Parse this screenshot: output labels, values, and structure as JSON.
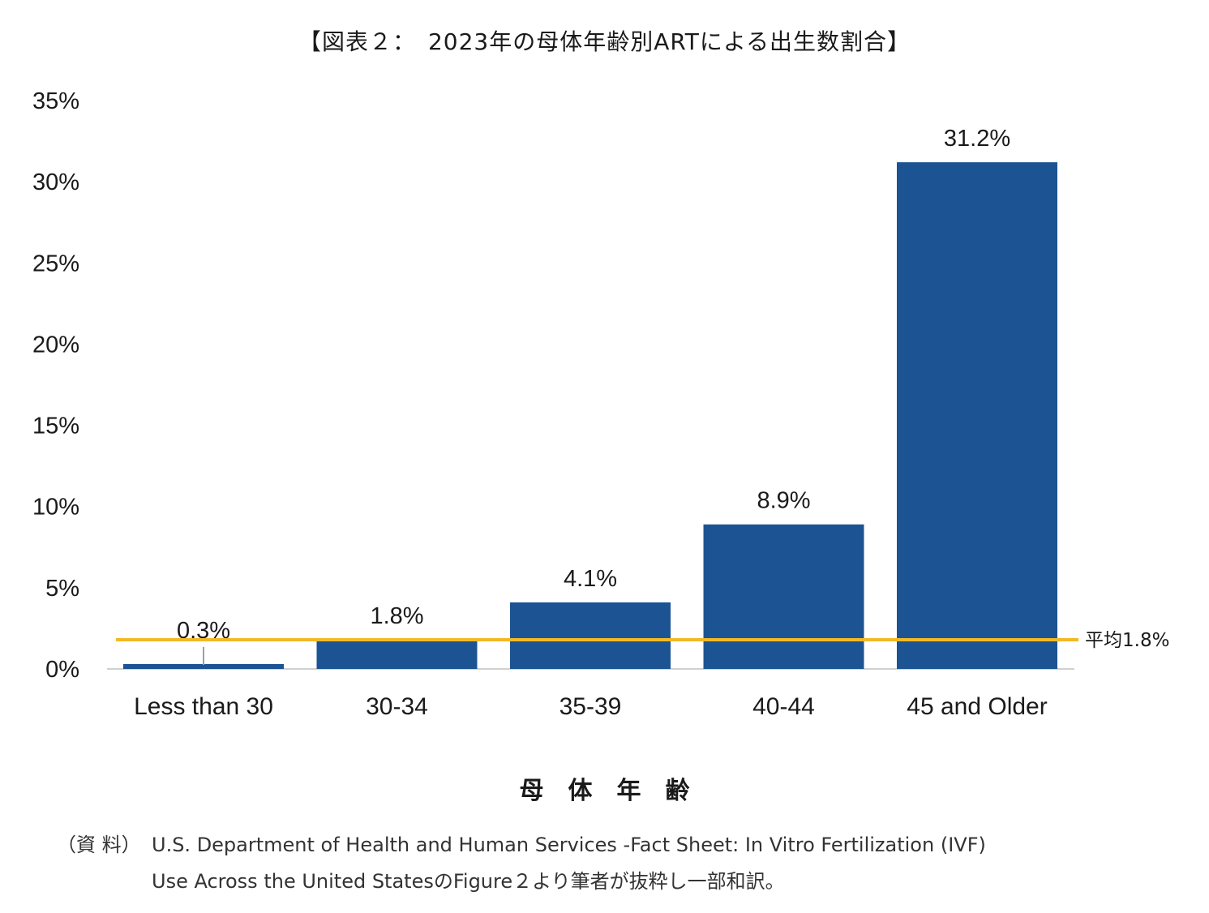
{
  "chart_data": {
    "type": "bar",
    "title": "【図表２：　2023年の母体年齢別ARTによる出生数割合】",
    "xlabel": "母体年齢",
    "ylabel": "",
    "categories": [
      "Less than 30",
      "30-34",
      "35-39",
      "40-44",
      "45 and Older"
    ],
    "values": [
      0.3,
      1.8,
      4.1,
      8.9,
      31.2
    ],
    "data_labels": [
      "0.3%",
      "1.8%",
      "4.1%",
      "8.9%",
      "31.2%"
    ],
    "ylim": [
      0,
      35
    ],
    "y_ticks": [
      0,
      5,
      10,
      15,
      20,
      25,
      30,
      35
    ],
    "y_tick_labels": [
      "0%",
      "5%",
      "10%",
      "15%",
      "20%",
      "25%",
      "30%",
      "35%"
    ],
    "reference_line": {
      "value": 1.8,
      "label": "平均1.8%"
    },
    "grid": false,
    "bar_color": "#1c5493",
    "reference_color": "#f2b926"
  },
  "source": {
    "label": "（資 料）",
    "line1": "U.S. Department of Health and Human Services -Fact Sheet: In Vitro Fertilization (IVF)",
    "line2": "Use Across the United StatesのFigure２より筆者が抜粋し一部和訳。"
  }
}
